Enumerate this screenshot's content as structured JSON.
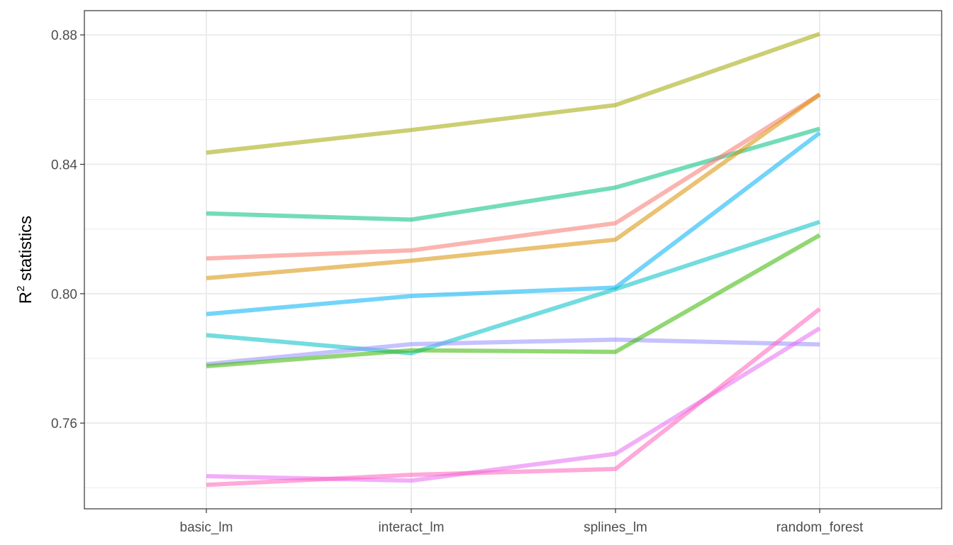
{
  "chart_data": {
    "type": "line",
    "categories": [
      "basic_lm",
      "interact_lm",
      "splines_lm",
      "random_forest"
    ],
    "ylabel": "R",
    "ylabel_superscript": "2",
    "ylabel_suffix": " statistics",
    "ylim": [
      0.7335,
      0.8875
    ],
    "yticks": [
      0.76,
      0.8,
      0.84,
      0.88
    ],
    "ytick_labels": [
      "0.76",
      "0.80",
      "0.84",
      "0.88"
    ],
    "grid": true,
    "legend": "none",
    "line_opacity": 0.55,
    "series": [
      {
        "color": "#A3A500",
        "values": [
          0.8436,
          0.8506,
          0.8583,
          0.8803
        ]
      },
      {
        "color": "#00BF7D",
        "values": [
          0.8248,
          0.8229,
          0.8328,
          0.851
        ]
      },
      {
        "color": "#F8766D",
        "values": [
          0.8109,
          0.8134,
          0.8218,
          0.8616
        ]
      },
      {
        "color": "#D89000",
        "values": [
          0.8048,
          0.8102,
          0.8167,
          0.8616
        ]
      },
      {
        "color": "#00B0F6",
        "values": [
          0.7937,
          0.7993,
          0.8019,
          0.8497
        ]
      },
      {
        "color": "#00BFC4",
        "values": [
          0.7872,
          0.7816,
          0.8014,
          0.8222
        ]
      },
      {
        "color": "#9590FF",
        "values": [
          0.7782,
          0.7844,
          0.7858,
          0.7843
        ]
      },
      {
        "color": "#39B600",
        "values": [
          0.7776,
          0.7825,
          0.782,
          0.8181
        ]
      },
      {
        "color": "#E76BF3",
        "values": [
          0.7436,
          0.7422,
          0.7505,
          0.7893
        ]
      },
      {
        "color": "#FF62BC",
        "values": [
          0.7409,
          0.744,
          0.7458,
          0.7953
        ]
      }
    ]
  }
}
